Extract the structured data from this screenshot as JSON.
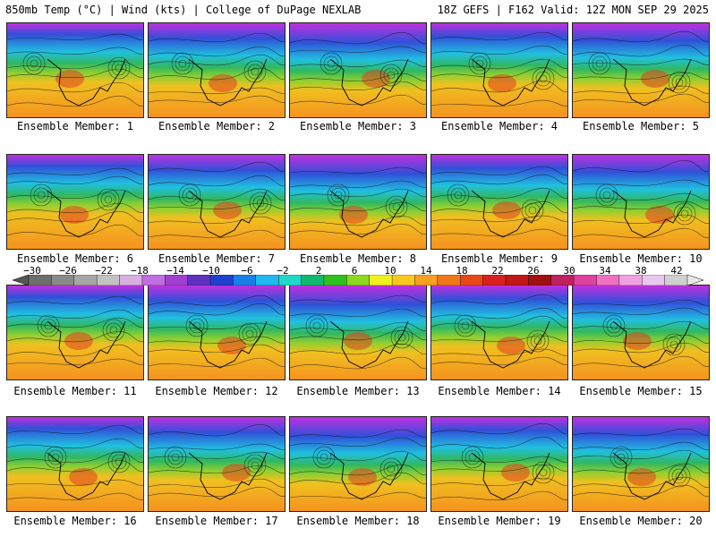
{
  "header": {
    "left_title": "850mb Temp (°C) | Wind (kts) | College of DuPage NEXLAB",
    "right_title": "18Z GEFS | F162 Valid: 12Z MON SEP 29 2025"
  },
  "members": [
    {
      "label": "Ensemble Member: 1"
    },
    {
      "label": "Ensemble Member: 2"
    },
    {
      "label": "Ensemble Member: 3"
    },
    {
      "label": "Ensemble Member: 4"
    },
    {
      "label": "Ensemble Member: 5"
    },
    {
      "label": "Ensemble Member: 6"
    },
    {
      "label": "Ensemble Member: 7"
    },
    {
      "label": "Ensemble Member: 8"
    },
    {
      "label": "Ensemble Member: 9"
    },
    {
      "label": "Ensemble Member: 10"
    },
    {
      "label": "Ensemble Member: 11"
    },
    {
      "label": "Ensemble Member: 12"
    },
    {
      "label": "Ensemble Member: 13"
    },
    {
      "label": "Ensemble Member: 14"
    },
    {
      "label": "Ensemble Member: 15"
    },
    {
      "label": "Ensemble Member: 16"
    },
    {
      "label": "Ensemble Member: 17"
    },
    {
      "label": "Ensemble Member: 18"
    },
    {
      "label": "Ensemble Member: 19"
    },
    {
      "label": "Ensemble Member: 20"
    }
  ],
  "colorbar": {
    "tick_labels": [
      "−30",
      "−26",
      "−22",
      "−18",
      "−14",
      "−10",
      "−6",
      "−2",
      "2",
      "6",
      "10",
      "14",
      "18",
      "22",
      "26",
      "30",
      "34",
      "38",
      "42"
    ],
    "colors": [
      "#6e6e6e",
      "#8a8a8a",
      "#a6a6a6",
      "#c2c2c2",
      "#d8b0e0",
      "#c06ee0",
      "#a040d0",
      "#6030c0",
      "#2040d0",
      "#1880e8",
      "#20b8f0",
      "#20d8c8",
      "#10b870",
      "#30c020",
      "#90d820",
      "#f0f020",
      "#f8c820",
      "#f8a020",
      "#f07818",
      "#e84818",
      "#d82020",
      "#c01818",
      "#a01010",
      "#c02060",
      "#e040a0",
      "#f070c0",
      "#f0a0e0",
      "#e8c8f0",
      "#d0d0d0"
    ]
  },
  "map_colors": {
    "cold_top": "#c030e0",
    "cold": "#3050d8",
    "cool": "#20c0e0",
    "mild": "#30b860",
    "warm_green": "#90d030",
    "warm": "#f0c020",
    "hot": "#f59020",
    "very_hot": "#e04020"
  }
}
